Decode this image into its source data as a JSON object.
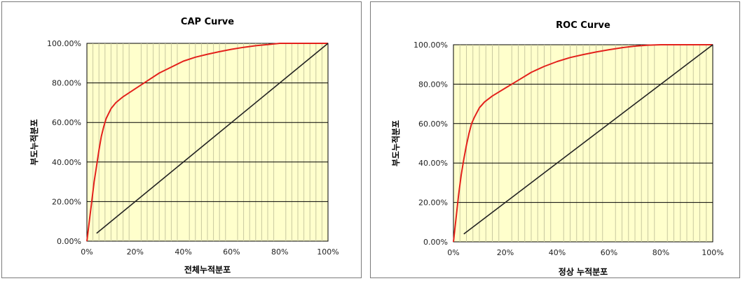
{
  "colors": {
    "plot_background": "#ffffcc",
    "minor_gridline": "#c8c8a0",
    "major_gridline": "#000000",
    "model_curve": "#e3211c",
    "diagonal": "#222222"
  },
  "chart_data": [
    {
      "type": "line",
      "title": "CAP Curve",
      "xlabel": "전체누적분포",
      "ylabel": "부도누적분포",
      "xlim": [
        0,
        100
      ],
      "ylim": [
        0,
        100
      ],
      "x_ticks": [
        "0%",
        "20%",
        "40%",
        "60%",
        "80%",
        "100%"
      ],
      "y_ticks": [
        "0.00%",
        "20.00%",
        "40.00%",
        "60.00%",
        "80.00%",
        "100.00%"
      ],
      "grid": {
        "vertical_step": 2.5,
        "horizontal_step": 20
      },
      "series": [
        {
          "color": "#e3211c",
          "x": [
            0,
            1,
            2,
            3,
            4,
            5,
            6,
            7,
            8,
            10,
            12,
            15,
            20,
            25,
            30,
            35,
            40,
            45,
            50,
            55,
            60,
            65,
            70,
            75,
            80,
            85,
            90,
            95,
            100
          ],
          "y": [
            0,
            10,
            20,
            30,
            38,
            46,
            53,
            58,
            62,
            67,
            70,
            73,
            77,
            81,
            85,
            88,
            91,
            93,
            94.5,
            95.8,
            97,
            98,
            98.8,
            99.4,
            100,
            100,
            100,
            100,
            100
          ]
        },
        {
          "color": "#222222",
          "x": [
            4,
            100
          ],
          "y": [
            4,
            100
          ]
        }
      ]
    },
    {
      "type": "line",
      "title": "ROC Curve",
      "xlabel": "정상 누적분포",
      "ylabel": "부도누적분포",
      "xlim": [
        0,
        100
      ],
      "ylim": [
        0,
        100
      ],
      "x_ticks": [
        "0%",
        "20%",
        "40%",
        "60%",
        "80%",
        "100%"
      ],
      "y_ticks": [
        "0.00%",
        "20.00%",
        "40.00%",
        "60.00%",
        "80.00%",
        "100.00%"
      ],
      "grid": {
        "vertical_step": 2.5,
        "horizontal_step": 20
      },
      "series": [
        {
          "color": "#e3211c",
          "x": [
            0,
            1,
            2,
            3,
            4,
            5,
            6,
            7,
            8,
            10,
            12,
            15,
            20,
            25,
            30,
            35,
            40,
            45,
            50,
            55,
            60,
            65,
            70,
            75,
            80,
            85,
            90,
            95,
            100
          ],
          "y": [
            0,
            12,
            24,
            34,
            42,
            49,
            55,
            60,
            63,
            68,
            71,
            74,
            78,
            82,
            86,
            89,
            91.5,
            93.5,
            95,
            96.3,
            97.5,
            98.5,
            99.3,
            99.8,
            100,
            100,
            100,
            100,
            100
          ]
        },
        {
          "color": "#222222",
          "x": [
            4,
            100
          ],
          "y": [
            4,
            100
          ]
        }
      ]
    }
  ]
}
